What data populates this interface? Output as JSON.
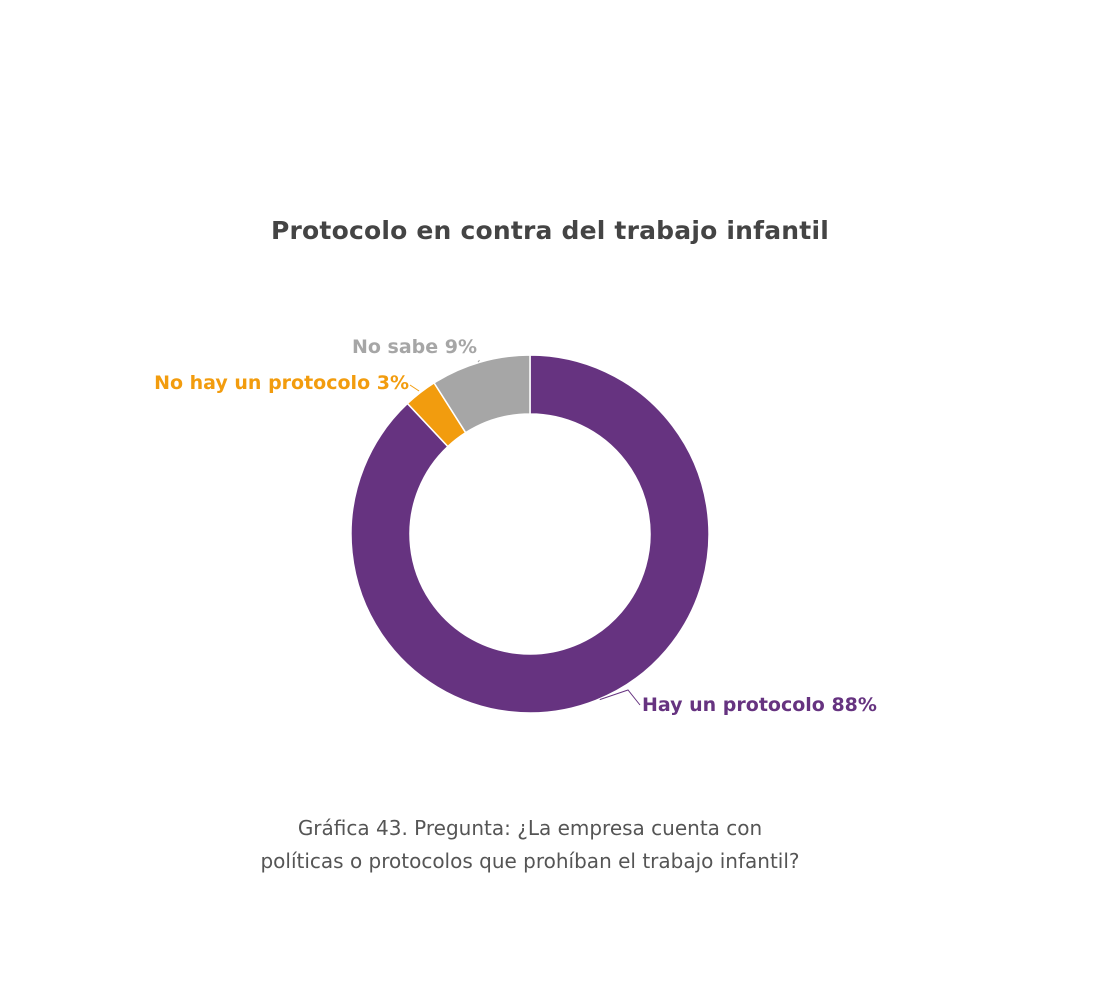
{
  "chart_data": {
    "type": "pie",
    "donut": true,
    "title": "Protocolo en contra del trabajo infantil",
    "slices": [
      {
        "label": "Hay un protocolo 88%",
        "value": 88,
        "color": "#663380"
      },
      {
        "label": "No hay un protocolo 3%",
        "value": 3,
        "color": "#f29c0e"
      },
      {
        "label": "No sabe 9%",
        "value": 9,
        "color": "#a6a6a6"
      }
    ],
    "legend": "none"
  },
  "caption": {
    "line1": "Gráfica 43. Pregunta: ¿La empresa cuenta con",
    "line2": "políticas o protocolos que prohíban el trabajo infantil?"
  }
}
